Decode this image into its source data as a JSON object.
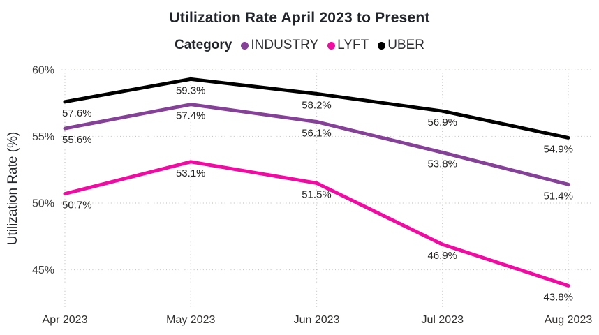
{
  "title": "Utilization Rate April 2023 to Present",
  "legend": {
    "label": "Category",
    "items": [
      {
        "name": "INDUSTRY",
        "color": "#854097"
      },
      {
        "name": "LYFT",
        "color": "#F10BA3"
      },
      {
        "name": "UBER",
        "color": "#000000"
      }
    ]
  },
  "chart_data": {
    "type": "line",
    "title": "Utilization Rate April 2023 to Present",
    "categories": [
      "Apr 2023",
      "May 2023",
      "Jun 2023",
      "Jul 2023",
      "Aug 2023"
    ],
    "series": [
      {
        "name": "INDUSTRY",
        "color": "#854097",
        "values": [
          55.6,
          57.4,
          56.1,
          53.8,
          51.4
        ]
      },
      {
        "name": "LYFT",
        "color": "#F10BA3",
        "values": [
          50.7,
          53.1,
          51.5,
          46.9,
          43.8
        ]
      },
      {
        "name": "UBER",
        "color": "#000000",
        "values": [
          57.6,
          59.3,
          58.2,
          56.9,
          54.9
        ]
      }
    ],
    "xlabel": "",
    "ylabel": "Utilization Rate (%)",
    "yticks": [
      60,
      55,
      50,
      45
    ],
    "ytick_labels": [
      "60%",
      "55%",
      "50%",
      "45%"
    ],
    "ylim": [
      42.5,
      61
    ],
    "grid": true,
    "gridstyle": "dotted",
    "legend_position": "top",
    "data_labels": true
  },
  "colors": {
    "background": "#FFFFFF",
    "text": "#252423",
    "grid": "#C9C7C5"
  }
}
